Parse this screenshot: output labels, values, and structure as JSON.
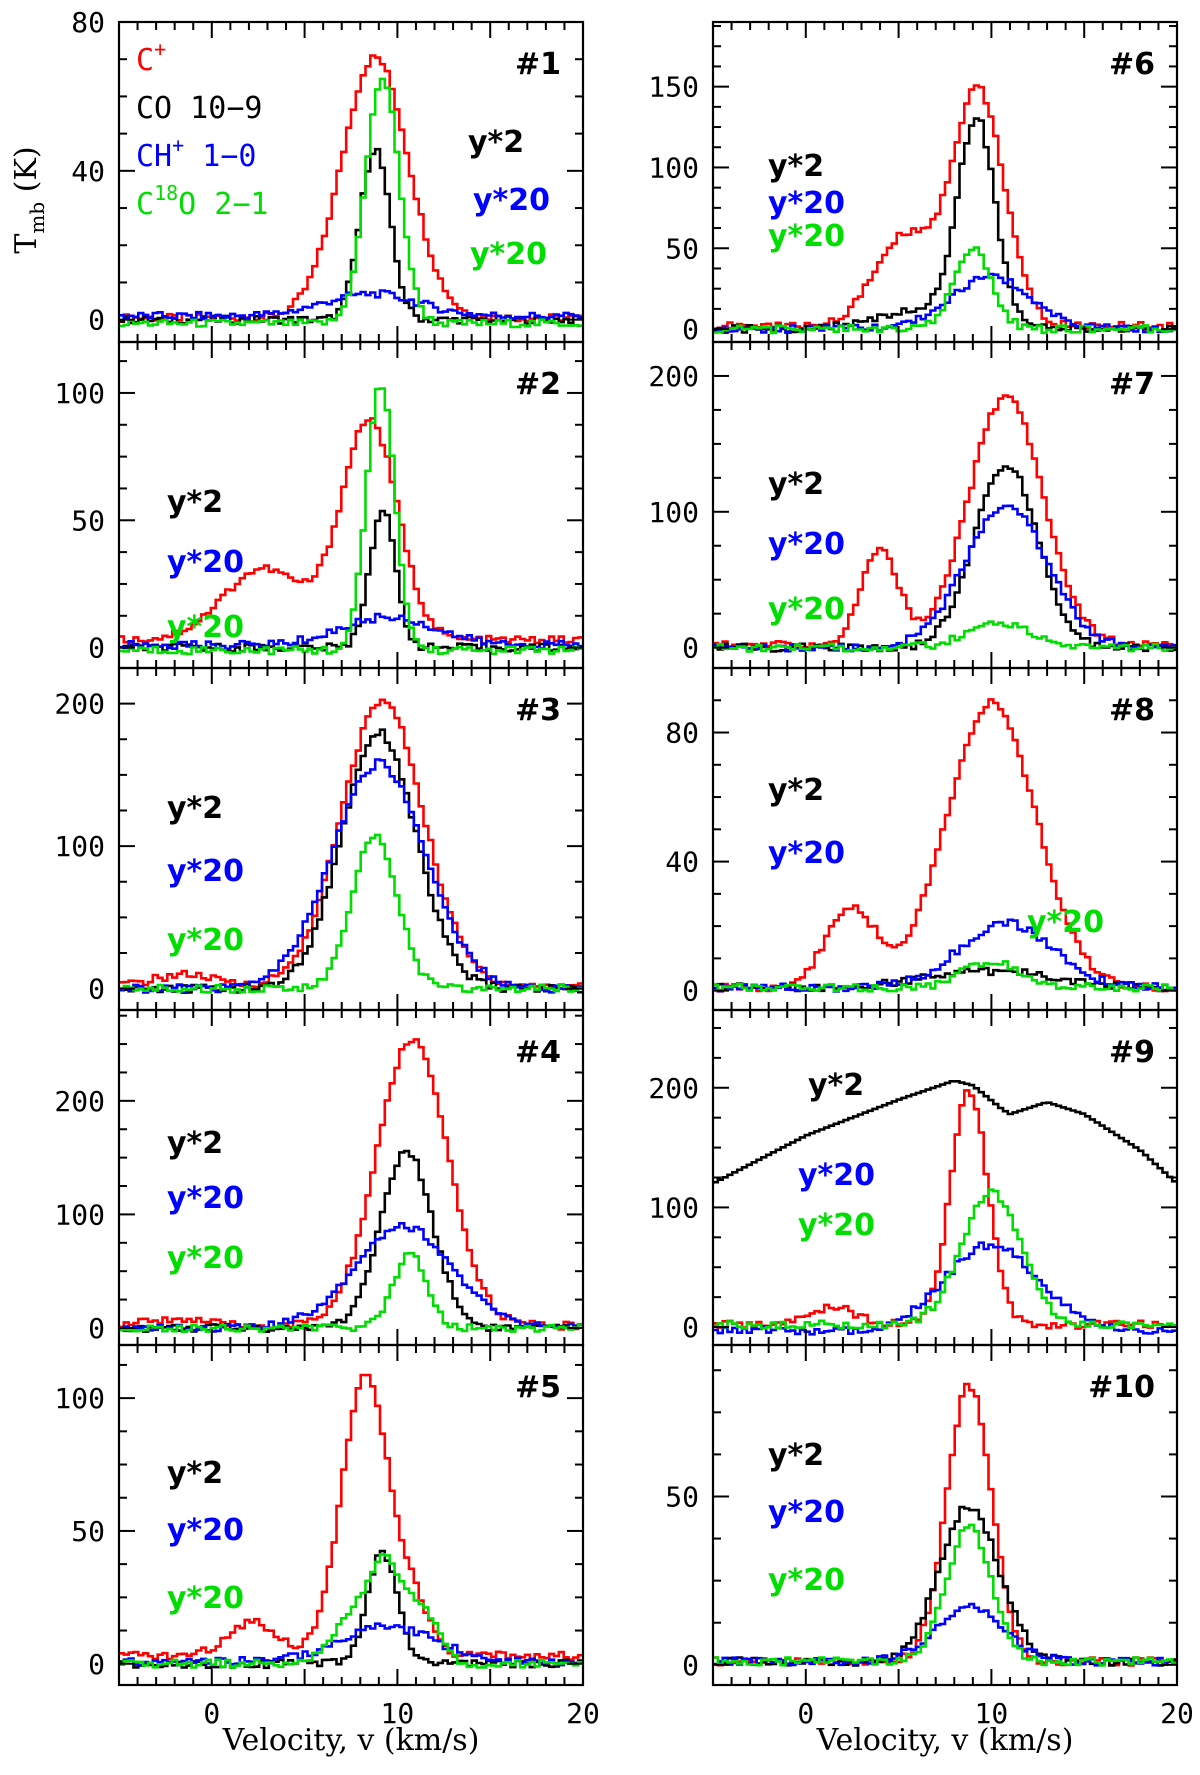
{
  "figure": {
    "xlabel": "Velocity, v (km/s)",
    "ylabel": "T",
    "ylabel_sub": "mb",
    "ylabel_unit": " (K)"
  },
  "legend": [
    {
      "label": "C",
      "sup": "+",
      "rest": "",
      "color": "#ff0000"
    },
    {
      "label": "CO 10",
      "sup": "",
      "rest": "−9",
      "color": "#000000"
    },
    {
      "label": "CH",
      "sup": "+",
      "rest": " 1−0",
      "color": "#0000ff"
    },
    {
      "label": "C",
      "sup": "18",
      "rest": "O 2−1",
      "color": "#00dd00"
    }
  ],
  "colors": {
    "cplus": "#ff0000",
    "co": "#000000",
    "chplus": "#0000ff",
    "c18o": "#00dd00"
  },
  "chart_data": [
    {
      "type": "line",
      "panel": "#1",
      "xlim": [
        -5,
        20
      ],
      "ylim": [
        -6,
        80
      ],
      "yticks": [
        0,
        40,
        80
      ],
      "xticks": [
        0,
        10,
        20
      ],
      "annotations": [
        {
          "text": "y*2",
          "color": "#000000"
        },
        {
          "text": "y*20",
          "color": "#0000ff"
        },
        {
          "text": "y*20",
          "color": "#00dd00"
        }
      ],
      "series": [
        {
          "name": "C+",
          "color": "#ff0000",
          "gauss": [
            [
              8.8,
              1.8,
              70
            ]
          ],
          "baseline": 0.5
        },
        {
          "name": "CO 10-9 (y*2)",
          "color": "#000000",
          "gauss": [
            [
              8.8,
              0.8,
              46
            ]
          ],
          "baseline": 0
        },
        {
          "name": "CH+ 1-0 (y*20)",
          "color": "#0000ff",
          "gauss": [
            [
              8.6,
              2.5,
              6
            ]
          ],
          "baseline": 1
        },
        {
          "name": "C18O 2-1 (y*20)",
          "color": "#00dd00",
          "gauss": [
            [
              9.2,
              0.9,
              66
            ]
          ],
          "baseline": -1
        }
      ]
    },
    {
      "type": "line",
      "panel": "#2",
      "xlim": [
        -5,
        20
      ],
      "ylim": [
        -8,
        120
      ],
      "yticks": [
        0,
        50,
        100
      ],
      "xticks": [
        0,
        10,
        20
      ],
      "annotations": [
        {
          "text": "y*2",
          "color": "#000000"
        },
        {
          "text": "y*20",
          "color": "#0000ff"
        },
        {
          "text": "y*20",
          "color": "#00dd00"
        }
      ],
      "series": [
        {
          "name": "C+",
          "color": "#ff0000",
          "gauss": [
            [
              8.5,
              1.5,
              86
            ],
            [
              2.8,
              2.2,
              28
            ]
          ],
          "baseline": 3
        },
        {
          "name": "CO 10-9 (y*2)",
          "color": "#000000",
          "gauss": [
            [
              9.2,
              0.7,
              54
            ]
          ],
          "baseline": 0
        },
        {
          "name": "CH+ 1-0 (y*20)",
          "color": "#0000ff",
          "gauss": [
            [
              9.5,
              2.5,
              11
            ]
          ],
          "baseline": 1
        },
        {
          "name": "C18O 2-1 (y*20)",
          "color": "#00dd00",
          "gauss": [
            [
              9.1,
              0.75,
              105
            ]
          ],
          "baseline": -1
        }
      ]
    },
    {
      "type": "line",
      "panel": "#3",
      "xlim": [
        -5,
        20
      ],
      "ylim": [
        -15,
        225
      ],
      "yticks": [
        0,
        100,
        200
      ],
      "xticks": [
        0,
        10,
        20
      ],
      "annotations": [
        {
          "text": "y*2",
          "color": "#000000"
        },
        {
          "text": "y*20",
          "color": "#0000ff"
        },
        {
          "text": "y*20",
          "color": "#00dd00"
        }
      ],
      "series": [
        {
          "name": "C+",
          "color": "#ff0000",
          "gauss": [
            [
              9.2,
              2.2,
              200
            ],
            [
              -1.5,
              1.5,
              8
            ]
          ],
          "baseline": 2
        },
        {
          "name": "CO 10-9 (y*2)",
          "color": "#000000",
          "gauss": [
            [
              9.0,
              2.0,
              180
            ]
          ],
          "baseline": 0
        },
        {
          "name": "CH+ 1-0 (y*20)",
          "color": "#0000ff",
          "gauss": [
            [
              9.0,
              2.5,
              158
            ]
          ],
          "baseline": 0
        },
        {
          "name": "C18O 2-1 (y*20)",
          "color": "#00dd00",
          "gauss": [
            [
              8.8,
              1.2,
              108
            ]
          ],
          "baseline": 0
        }
      ]
    },
    {
      "type": "line",
      "panel": "#4",
      "xlim": [
        -5,
        20
      ],
      "ylim": [
        -15,
        280
      ],
      "yticks": [
        0,
        100,
        200
      ],
      "xticks": [
        0,
        10,
        20
      ],
      "annotations": [
        {
          "text": "y*2",
          "color": "#000000"
        },
        {
          "text": "y*20",
          "color": "#0000ff"
        },
        {
          "text": "y*20",
          "color": "#00dd00"
        }
      ],
      "series": [
        {
          "name": "C+",
          "color": "#ff0000",
          "gauss": [
            [
              10.8,
              1.9,
              252
            ],
            [
              -2,
              1.5,
              6
            ]
          ],
          "baseline": 2
        },
        {
          "name": "CO 10-9 (y*2)",
          "color": "#000000",
          "gauss": [
            [
              10.5,
              1.4,
              155
            ]
          ],
          "baseline": 0
        },
        {
          "name": "CH+ 1-0 (y*20)",
          "color": "#0000ff",
          "gauss": [
            [
              10.3,
              2.6,
              90
            ]
          ],
          "baseline": 0
        },
        {
          "name": "C18O 2-1 (y*20)",
          "color": "#00dd00",
          "gauss": [
            [
              10.7,
              0.9,
              66
            ]
          ],
          "baseline": 0
        }
      ]
    },
    {
      "type": "line",
      "panel": "#5",
      "xlim": [
        -5,
        20
      ],
      "ylim": [
        -8,
        120
      ],
      "yticks": [
        0,
        50,
        100
      ],
      "xticks": [
        0,
        10,
        20
      ],
      "annotations": [
        {
          "text": "y*2",
          "color": "#000000"
        },
        {
          "text": "y*20",
          "color": "#0000ff"
        },
        {
          "text": "y*20",
          "color": "#00dd00"
        }
      ],
      "series": [
        {
          "name": "C+",
          "color": "#ff0000",
          "gauss": [
            [
              8.3,
              1.3,
              105
            ],
            [
              2.2,
              1.3,
              13
            ],
            [
              11.0,
              0.8,
              15
            ]
          ],
          "baseline": 3
        },
        {
          "name": "CO 10-9 (y*2)",
          "color": "#000000",
          "gauss": [
            [
              9.2,
              0.8,
              42
            ]
          ],
          "baseline": 0
        },
        {
          "name": "CH+ 1-0 (y*20)",
          "color": "#0000ff",
          "gauss": [
            [
              9.5,
              2.5,
              13
            ]
          ],
          "baseline": 1
        },
        {
          "name": "C18O 2-1 (y*20)",
          "color": "#00dd00",
          "gauss": [
            [
              9.4,
              0.7,
              28
            ],
            [
              8.0,
              1.2,
              22
            ],
            [
              11.2,
              0.9,
              22
            ]
          ],
          "baseline": 0
        }
      ]
    },
    {
      "type": "line",
      "panel": "#6",
      "xlim": [
        -5,
        20
      ],
      "ylim": [
        -8,
        190
      ],
      "yticks": [
        0,
        50,
        100,
        150
      ],
      "xticks": [
        0,
        10,
        20
      ],
      "annotations": [
        {
          "text": "y*2",
          "color": "#000000"
        },
        {
          "text": "y*20",
          "color": "#0000ff"
        },
        {
          "text": "y*20",
          "color": "#00dd00"
        }
      ],
      "series": [
        {
          "name": "C+",
          "color": "#ff0000",
          "gauss": [
            [
              9.3,
              1.4,
              145
            ],
            [
              5.3,
              1.6,
              55
            ]
          ],
          "baseline": 2
        },
        {
          "name": "CO 10-9 (y*2)",
          "color": "#000000",
          "gauss": [
            [
              9.2,
              1.0,
              125
            ],
            [
              6.5,
              2.5,
              12
            ]
          ],
          "baseline": 0
        },
        {
          "name": "CH+ 1-0 (y*20)",
          "color": "#0000ff",
          "gauss": [
            [
              10.0,
              2.2,
              32
            ]
          ],
          "baseline": 0
        },
        {
          "name": "C18O 2-1 (y*20)",
          "color": "#00dd00",
          "gauss": [
            [
              9.0,
              1.0,
              50
            ]
          ],
          "baseline": 0
        }
      ]
    },
    {
      "type": "line",
      "panel": "#7",
      "xlim": [
        -5,
        20
      ],
      "ylim": [
        -15,
        225
      ],
      "yticks": [
        0,
        100,
        200
      ],
      "xticks": [
        0,
        10,
        20
      ],
      "annotations": [
        {
          "text": "y*2",
          "color": "#000000"
        },
        {
          "text": "y*20",
          "color": "#0000ff"
        },
        {
          "text": "y*20",
          "color": "#00dd00"
        }
      ],
      "series": [
        {
          "name": "C+",
          "color": "#ff0000",
          "gauss": [
            [
              10.8,
              2.0,
              183
            ],
            [
              4.0,
              1.0,
              70
            ]
          ],
          "baseline": 2
        },
        {
          "name": "CO 10-9 (y*2)",
          "color": "#000000",
          "gauss": [
            [
              10.8,
              1.7,
              135
            ]
          ],
          "baseline": 0
        },
        {
          "name": "CH+ 1-0 (y*20)",
          "color": "#0000ff",
          "gauss": [
            [
              10.8,
              2.2,
              105
            ]
          ],
          "baseline": 0
        },
        {
          "name": "C18O 2-1 (y*20)",
          "color": "#00dd00",
          "gauss": [
            [
              10.5,
              1.8,
              17
            ]
          ],
          "baseline": 0
        }
      ]
    },
    {
      "type": "line",
      "panel": "#8",
      "xlim": [
        -5,
        20
      ],
      "ylim": [
        -6,
        100
      ],
      "yticks": [
        0,
        40,
        80
      ],
      "xticks": [
        0,
        10,
        20
      ],
      "annotations": [
        {
          "text": "y*2",
          "color": "#000000"
        },
        {
          "text": "y*20",
          "color": "#0000ff"
        },
        {
          "text": "y*20",
          "color": "#00dd00"
        }
      ],
      "series": [
        {
          "name": "C+",
          "color": "#ff0000",
          "gauss": [
            [
              10.0,
              2.4,
              88
            ],
            [
              2.4,
              1.3,
              25
            ]
          ],
          "baseline": 1
        },
        {
          "name": "CO 10-9 (y*2)",
          "color": "#000000",
          "gauss": [
            [
              10.0,
              3.5,
              5
            ]
          ],
          "baseline": 1
        },
        {
          "name": "CH+ 1-0 (y*20)",
          "color": "#0000ff",
          "gauss": [
            [
              10.8,
              2.5,
              20
            ]
          ],
          "baseline": 1
        },
        {
          "name": "C18O 2-1 (y*20)",
          "color": "#00dd00",
          "gauss": [
            [
              10.0,
              1.5,
              8
            ]
          ],
          "baseline": 1
        }
      ]
    },
    {
      "type": "line",
      "panel": "#9",
      "xlim": [
        -5,
        20
      ],
      "ylim": [
        -15,
        265
      ],
      "yticks": [
        0,
        100,
        200
      ],
      "xticks": [
        0,
        10,
        20
      ],
      "annotations": [
        {
          "text": "y*2",
          "color": "#000000"
        },
        {
          "text": "y*20",
          "color": "#0000ff"
        },
        {
          "text": "y*20",
          "color": "#00dd00"
        }
      ],
      "series": [
        {
          "name": "C+",
          "color": "#ff0000",
          "gauss": [
            [
              8.8,
              1.0,
              195
            ],
            [
              1.5,
              1.2,
              15
            ]
          ],
          "baseline": 2
        },
        {
          "name": "CO 10-9 (y*2)",
          "color": "#000000",
          "points": [
            [
              -5,
              120
            ],
            [
              0,
              160
            ],
            [
              5,
              190
            ],
            [
              8,
              206
            ],
            [
              9,
              202
            ],
            [
              10.5,
              183
            ],
            [
              11,
              178
            ],
            [
              13,
              188
            ],
            [
              15,
              178
            ],
            [
              18,
              148
            ],
            [
              20,
              120
            ]
          ]
        },
        {
          "name": "CH+ 1-0 (y*20)",
          "color": "#0000ff",
          "gauss": [
            [
              10.0,
              2.5,
              72
            ]
          ],
          "baseline": -3
        },
        {
          "name": "C18O 2-1 (y*20)",
          "color": "#00dd00",
          "gauss": [
            [
              10.0,
              1.6,
              110
            ]
          ],
          "baseline": 2
        }
      ]
    },
    {
      "type": "line",
      "panel": "#10",
      "xlim": [
        -5,
        20
      ],
      "ylim": [
        -6,
        95
      ],
      "yticks": [
        0,
        50
      ],
      "xticks": [
        0,
        10,
        20
      ],
      "annotations": [
        {
          "text": "y*2",
          "color": "#000000"
        },
        {
          "text": "y*20",
          "color": "#0000ff"
        },
        {
          "text": "y*20",
          "color": "#00dd00"
        }
      ],
      "series": [
        {
          "name": "C+",
          "color": "#ff0000",
          "gauss": [
            [
              8.8,
              1.2,
              82
            ]
          ],
          "baseline": 1
        },
        {
          "name": "CO 10-9 (y*2)",
          "color": "#000000",
          "gauss": [
            [
              8.8,
              1.6,
              46
            ]
          ],
          "baseline": 1
        },
        {
          "name": "CH+ 1-0 (y*20)",
          "color": "#0000ff",
          "gauss": [
            [
              8.8,
              1.8,
              16
            ]
          ],
          "baseline": 1
        },
        {
          "name": "C18O 2-1 (y*20)",
          "color": "#00dd00",
          "gauss": [
            [
              8.8,
              1.2,
              40
            ]
          ],
          "baseline": 1
        }
      ]
    }
  ]
}
